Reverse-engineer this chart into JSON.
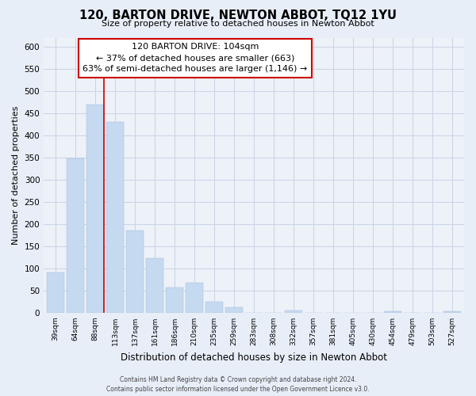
{
  "title": "120, BARTON DRIVE, NEWTON ABBOT, TQ12 1YU",
  "subtitle": "Size of property relative to detached houses in Newton Abbot",
  "xlabel": "Distribution of detached houses by size in Newton Abbot",
  "ylabel": "Number of detached properties",
  "bar_labels": [
    "39sqm",
    "64sqm",
    "88sqm",
    "113sqm",
    "137sqm",
    "161sqm",
    "186sqm",
    "210sqm",
    "235sqm",
    "259sqm",
    "283sqm",
    "308sqm",
    "332sqm",
    "357sqm",
    "381sqm",
    "405sqm",
    "430sqm",
    "454sqm",
    "479sqm",
    "503sqm",
    "527sqm"
  ],
  "bar_values": [
    90,
    348,
    470,
    430,
    185,
    123,
    57,
    67,
    24,
    13,
    0,
    0,
    5,
    0,
    0,
    0,
    0,
    3,
    0,
    0,
    3
  ],
  "bar_color": "#c5d9f0",
  "bar_edge_color": "#a0bcd8",
  "bg_color": "#e8eef8",
  "plot_bg_color": "#edf1f8",
  "marker_bar_index": 2,
  "ylim": [
    0,
    620
  ],
  "yticks": [
    0,
    50,
    100,
    150,
    200,
    250,
    300,
    350,
    400,
    450,
    500,
    550,
    600
  ],
  "annotation_line1": "120 BARTON DRIVE: 104sqm",
  "annotation_line2": "← 37% of detached houses are smaller (663)",
  "annotation_line3": "63% of semi-detached houses are larger (1,146) →",
  "annotation_box_color": "#ffffff",
  "annotation_box_edge": "#cc0000",
  "grid_color": "#c8d4e4",
  "marker_color": "#cc0000",
  "footer_line1": "Contains HM Land Registry data © Crown copyright and database right 2024.",
  "footer_line2": "Contains public sector information licensed under the Open Government Licence v3.0."
}
